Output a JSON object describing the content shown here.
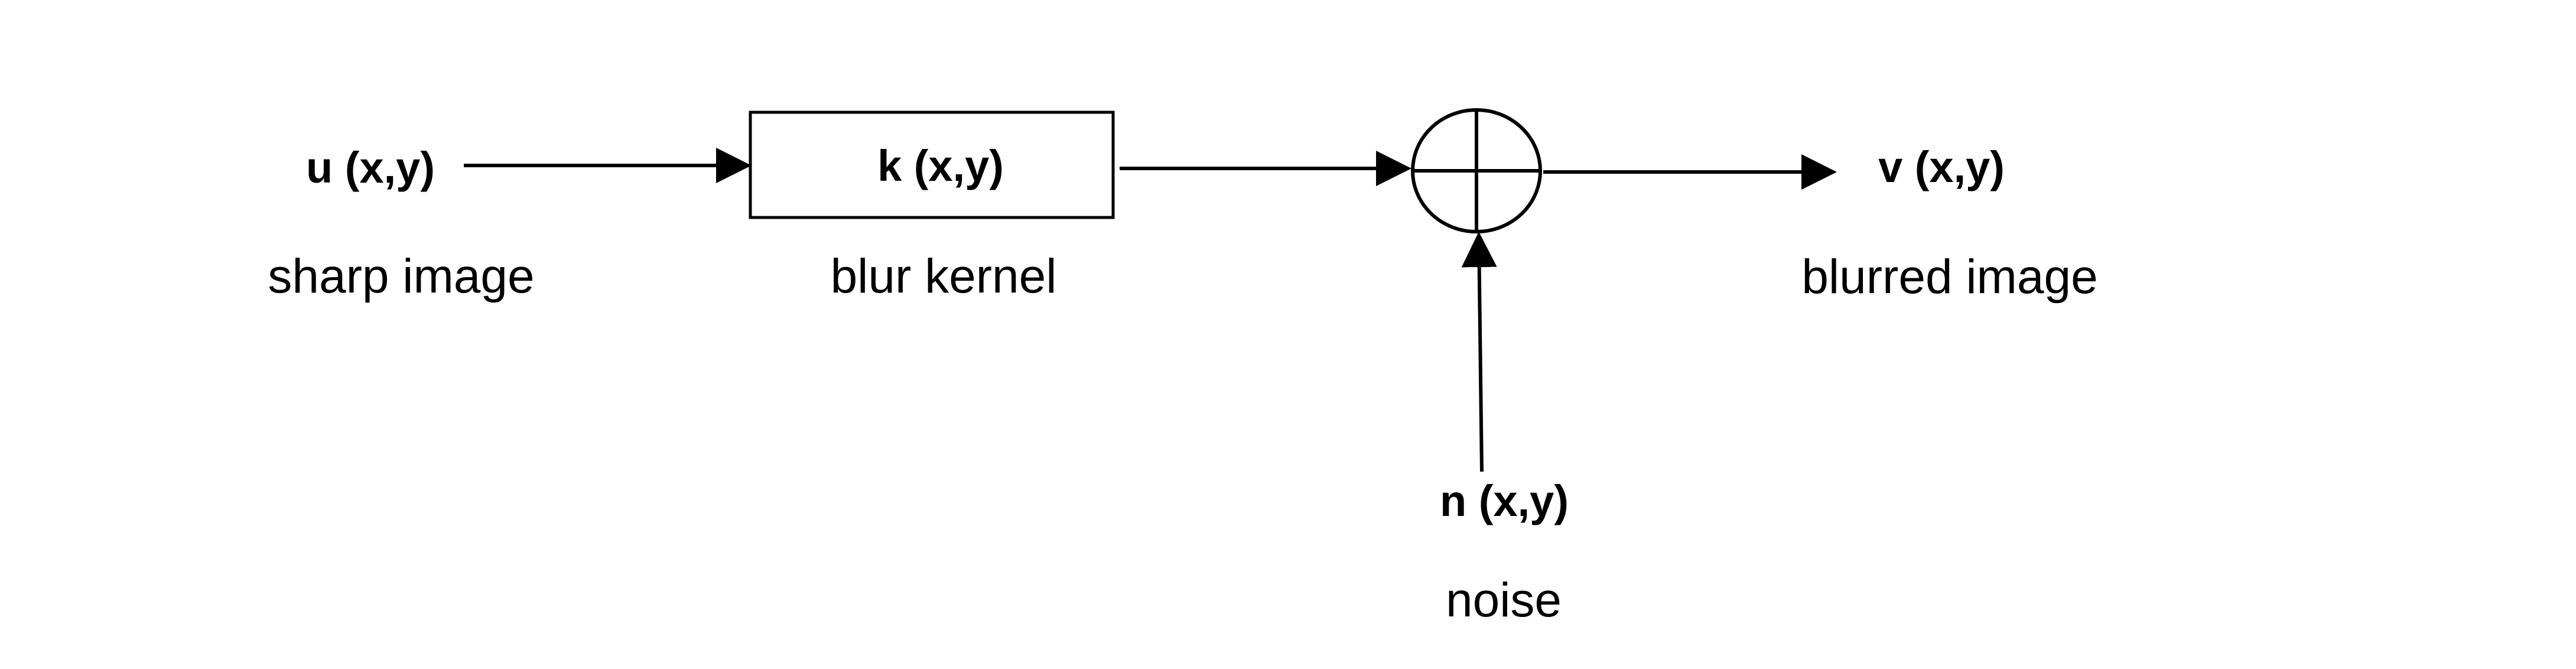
{
  "nodes": {
    "input": {
      "symbol": "u (x,y)",
      "caption": "sharp image"
    },
    "kernel": {
      "symbol": "k (x,y)",
      "caption": "blur kernel"
    },
    "output": {
      "symbol": "v (x,y)",
      "caption": "blurred image"
    },
    "noise": {
      "symbol": "n (x,y)",
      "caption": "noise"
    }
  },
  "edges": [
    {
      "from": "input",
      "to": "kernel"
    },
    {
      "from": "kernel",
      "to": "summing-junction"
    },
    {
      "from": "summing-junction",
      "to": "output"
    },
    {
      "from": "noise",
      "to": "summing-junction"
    }
  ]
}
